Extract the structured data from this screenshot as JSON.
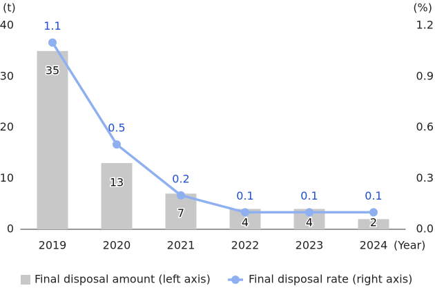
{
  "chart_data": {
    "type": "bar",
    "y_label": "(t)",
    "y2_label": "(%)",
    "x_label": "(Year)",
    "categories": [
      "2019",
      "2020",
      "2021",
      "2022",
      "2023",
      "2024"
    ],
    "series": [
      {
        "name": "Final disposal amount (left axis)",
        "type": "bar",
        "color": "#c8c8c8",
        "label_color": "#111111",
        "values": [
          35,
          13,
          7,
          4,
          4,
          2
        ]
      },
      {
        "name": "Final disposal rate (right axis)",
        "type": "line",
        "axis": "y2",
        "color": "#8fb0f0",
        "label_color": "#1f4fcf",
        "values": [
          1.1,
          0.5,
          0.2,
          0.1,
          0.1,
          0.1
        ]
      }
    ],
    "ylim": [
      0,
      40
    ],
    "yticks": [
      0,
      10,
      20,
      30,
      40
    ],
    "y2lim": [
      0,
      1.2
    ],
    "y2ticks": [
      {
        "value": 0,
        "label": "0.0"
      },
      0.3,
      0.6,
      0.9,
      1.2
    ],
    "grid": false
  }
}
